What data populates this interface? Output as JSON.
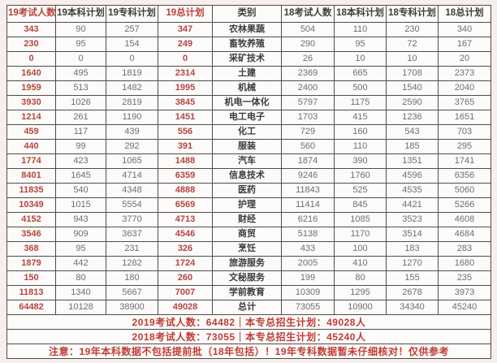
{
  "colors": {
    "accent_red": "#b5443e",
    "header_red": "#bb3f38",
    "number_gray": "#6e6e6e",
    "text_dark": "#3b3b3b",
    "border": "#4d4d4d",
    "page_background": "#f7efec"
  },
  "chart_data": {
    "type": "table",
    "title": "",
    "columns": [
      "19考试人数",
      "19本科计划",
      "19专科计划",
      "19总计划",
      "类别",
      "18考试人数",
      "18本科计划",
      "18专科计划",
      "18总计划"
    ],
    "rows": [
      [
        343,
        90,
        257,
        347,
        "农林果蔬",
        504,
        110,
        230,
        340
      ],
      [
        230,
        95,
        154,
        249,
        "畜牧养殖",
        290,
        95,
        72,
        167
      ],
      [
        0,
        0,
        0,
        0,
        "采矿技术",
        26,
        10,
        10,
        20
      ],
      [
        1640,
        495,
        1819,
        2314,
        "土建",
        2369,
        665,
        1708,
        2373
      ],
      [
        1959,
        513,
        1482,
        1995,
        "机械",
        2400,
        500,
        1540,
        2040
      ],
      [
        3930,
        1026,
        2819,
        3845,
        "机电一体化",
        5797,
        1175,
        2590,
        3765
      ],
      [
        1214,
        261,
        1190,
        1451,
        "电工电子",
        1703,
        415,
        1236,
        1651
      ],
      [
        459,
        117,
        439,
        556,
        "化工",
        729,
        160,
        543,
        703
      ],
      [
        440,
        99,
        292,
        391,
        "服装",
        560,
        110,
        185,
        295
      ],
      [
        1774,
        423,
        1065,
        1488,
        "汽车",
        1874,
        390,
        1351,
        1741
      ],
      [
        8401,
        1645,
        4714,
        6359,
        "信息技术",
        9246,
        1760,
        4596,
        6356
      ],
      [
        11835,
        540,
        4348,
        4888,
        "医药",
        11843,
        525,
        4535,
        5060
      ],
      [
        10349,
        1015,
        5554,
        6569,
        "护理",
        11414,
        845,
        4421,
        5266
      ],
      [
        4152,
        943,
        3770,
        4713,
        "财经",
        6216,
        1085,
        3523,
        4608
      ],
      [
        3546,
        909,
        3637,
        4546,
        "商贸",
        5138,
        1170,
        3514,
        4684
      ],
      [
        368,
        95,
        231,
        326,
        "烹饪",
        433,
        100,
        183,
        283
      ],
      [
        1879,
        442,
        1282,
        1724,
        "旅游服务",
        2005,
        410,
        1270,
        1680
      ],
      [
        150,
        80,
        180,
        260,
        "文秘服务",
        199,
        80,
        155,
        235
      ],
      [
        11813,
        1340,
        5667,
        7007,
        "学前教育",
        10309,
        1295,
        2678,
        3973
      ],
      [
        64482,
        10128,
        38900,
        49028,
        "总计",
        73055,
        10900,
        34340,
        45240
      ]
    ],
    "annotations": [
      "2019考试人数：64482｜本专总招生计划：49028人",
      "2018考试人数：73055｜本专总招生计划：45240人",
      "注意：19年本科数据不包括提前批（18年包括）！19年专科数据暂未仔细核对！仅供参考"
    ],
    "legend_position": "none",
    "grid": true
  }
}
